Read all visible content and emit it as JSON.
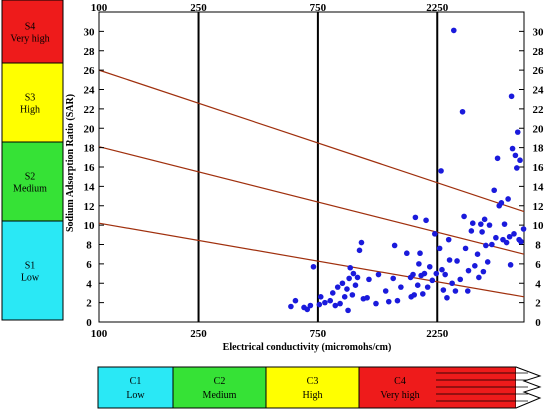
{
  "chart_data": {
    "type": "scatter",
    "title": "",
    "xlabel": "Electrical conductivity (micromohs/cm)",
    "ylabel": "Sodium Adsorption Ratio (SAR)",
    "x_scale": "log",
    "x_ticks": [
      100,
      250,
      750,
      2250
    ],
    "y_ticks": [
      0,
      2,
      4,
      6,
      8,
      10,
      12,
      14,
      16,
      18,
      20,
      22,
      24,
      26,
      28,
      30
    ],
    "xlim": [
      100,
      5000
    ],
    "ylim": [
      0,
      32
    ],
    "grid": false,
    "boundary_ec": [
      250,
      750,
      2250
    ],
    "boundary_lines": [
      {
        "name": "S1/S2",
        "points": [
          [
            100,
            10.2
          ],
          [
            5000,
            2.6
          ]
        ]
      },
      {
        "name": "S2/S3",
        "points": [
          [
            100,
            18.1
          ],
          [
            5000,
            7.0
          ]
        ]
      },
      {
        "name": "S3/S4",
        "points": [
          [
            100,
            26.0
          ],
          [
            5000,
            11.4
          ]
        ]
      }
    ],
    "points": [
      [
        585,
        1.6
      ],
      [
        610,
        2.2
      ],
      [
        660,
        1.5
      ],
      [
        680,
        1.3
      ],
      [
        700,
        1.7
      ],
      [
        720,
        5.7
      ],
      [
        760,
        1.8
      ],
      [
        770,
        2.6
      ],
      [
        800,
        2.0
      ],
      [
        840,
        2.2
      ],
      [
        860,
        3.0
      ],
      [
        880,
        1.7
      ],
      [
        900,
        3.6
      ],
      [
        920,
        1.9
      ],
      [
        940,
        4.0
      ],
      [
        960,
        2.6
      ],
      [
        980,
        3.4
      ],
      [
        990,
        1.2
      ],
      [
        1000,
        4.5
      ],
      [
        1010,
        5.6
      ],
      [
        1030,
        2.8
      ],
      [
        1040,
        5.0
      ],
      [
        1060,
        3.8
      ],
      [
        1080,
        4.6
      ],
      [
        1100,
        7.4
      ],
      [
        1120,
        8.2
      ],
      [
        1140,
        2.4
      ],
      [
        1180,
        2.5
      ],
      [
        1200,
        4.4
      ],
      [
        1280,
        1.9
      ],
      [
        1310,
        4.9
      ],
      [
        1400,
        3.2
      ],
      [
        1440,
        2.1
      ],
      [
        1500,
        4.5
      ],
      [
        1520,
        7.9
      ],
      [
        1560,
        2.2
      ],
      [
        1610,
        3.6
      ],
      [
        1700,
        7.1
      ],
      [
        1760,
        4.6
      ],
      [
        1770,
        2.6
      ],
      [
        1800,
        4.9
      ],
      [
        1820,
        2.8
      ],
      [
        1840,
        10.8
      ],
      [
        1880,
        3.8
      ],
      [
        1900,
        6.0
      ],
      [
        1920,
        7.1
      ],
      [
        1940,
        4.8
      ],
      [
        1970,
        2.9
      ],
      [
        2000,
        5.0
      ],
      [
        2030,
        10.5
      ],
      [
        2060,
        3.6
      ],
      [
        2100,
        5.7
      ],
      [
        2150,
        4.3
      ],
      [
        2200,
        9.1
      ],
      [
        2230,
        5.0
      ],
      [
        2300,
        7.6
      ],
      [
        2330,
        15.6
      ],
      [
        2350,
        5.4
      ],
      [
        2380,
        3.3
      ],
      [
        2420,
        4.9
      ],
      [
        2460,
        2.5
      ],
      [
        2500,
        8.5
      ],
      [
        2520,
        6.4
      ],
      [
        2580,
        4.0
      ],
      [
        2620,
        30.1
      ],
      [
        2660,
        3.2
      ],
      [
        2700,
        6.3
      ],
      [
        2780,
        4.4
      ],
      [
        2840,
        21.7
      ],
      [
        2880,
        10.9
      ],
      [
        2920,
        7.6
      ],
      [
        2980,
        3.2
      ],
      [
        3000,
        5.3
      ],
      [
        3080,
        9.4
      ],
      [
        3120,
        10.2
      ],
      [
        3180,
        5.8
      ],
      [
        3260,
        7.0
      ],
      [
        3300,
        4.6
      ],
      [
        3360,
        10.1
      ],
      [
        3400,
        9.3
      ],
      [
        3440,
        5.2
      ],
      [
        3480,
        10.6
      ],
      [
        3520,
        7.9
      ],
      [
        3580,
        6.2
      ],
      [
        3640,
        10.0
      ],
      [
        3720,
        8.0
      ],
      [
        3800,
        13.6
      ],
      [
        3860,
        8.7
      ],
      [
        3920,
        16.9
      ],
      [
        3980,
        12.0
      ],
      [
        4060,
        12.3
      ],
      [
        4120,
        8.5
      ],
      [
        4180,
        10.1
      ],
      [
        4260,
        8.2
      ],
      [
        4320,
        12.7
      ],
      [
        4380,
        8.8
      ],
      [
        4420,
        5.9
      ],
      [
        4460,
        23.3
      ],
      [
        4500,
        17.9
      ],
      [
        4560,
        9.1
      ],
      [
        4620,
        17.2
      ],
      [
        4680,
        15.9
      ],
      [
        4720,
        19.6
      ],
      [
        4780,
        8.5
      ],
      [
        4820,
        16.7
      ],
      [
        4860,
        8.3
      ],
      [
        4980,
        9.6
      ]
    ]
  },
  "top_axis": {
    "labels": [
      "100",
      "250",
      "750",
      "2250"
    ]
  },
  "salinity_bands": [
    {
      "code": "C1",
      "label": "Low",
      "color": "#2ae8f5"
    },
    {
      "code": "C2",
      "label": "Medium",
      "color": "#36e236"
    },
    {
      "code": "C3",
      "label": "High",
      "color": "#ffff00"
    },
    {
      "code": "C4",
      "label": "Very high",
      "color": "#ee1b1b"
    }
  ],
  "sodium_bands": [
    {
      "code": "S4",
      "label": "Very high",
      "color": "#ee1b1b"
    },
    {
      "code": "S3",
      "label": "High",
      "color": "#ffff00"
    },
    {
      "code": "S2",
      "label": "Medium",
      "color": "#36e236"
    },
    {
      "code": "S1",
      "label": "Low",
      "color": "#2ae8f5"
    }
  ],
  "point_color": "#1a1adc",
  "line_color": "#a0300e"
}
